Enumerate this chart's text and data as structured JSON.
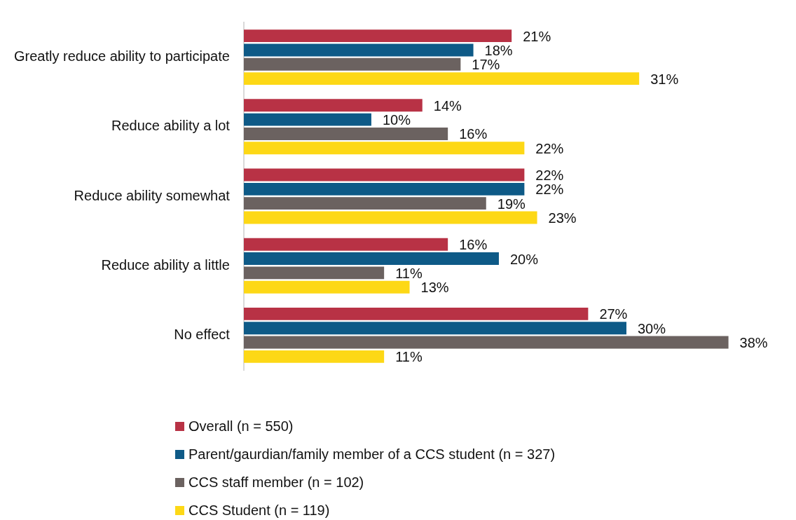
{
  "chart_data": {
    "type": "bar",
    "orientation": "horizontal",
    "categories": [
      "Greatly reduce ability to participate",
      "Reduce ability a lot",
      "Reduce ability somewhat",
      "Reduce ability a little",
      "No effect"
    ],
    "series": [
      {
        "name": "Overall (n = 550)",
        "color": "#b83245",
        "values": [
          21,
          14,
          22,
          16,
          27
        ],
        "value_labels": [
          "21%",
          "14%",
          "22%",
          "16%",
          "27%"
        ]
      },
      {
        "name": "Parent/gaurdian/family member of a CCS student (n = 327)",
        "color": "#0e5a87",
        "values": [
          18,
          10,
          22,
          20,
          30
        ],
        "value_labels": [
          "18%",
          "10%",
          "22%",
          "20%",
          "30%"
        ]
      },
      {
        "name": "CCS staff member (n = 102)",
        "color": "#6b6260",
        "values": [
          17,
          16,
          19,
          11,
          38
        ],
        "value_labels": [
          "17%",
          "16%",
          "19%",
          "11%",
          "38%"
        ]
      },
      {
        "name": "CCS Student (n = 119)",
        "color": "#fdd816",
        "values": [
          31,
          22,
          23,
          13,
          11
        ],
        "value_labels": [
          "31%",
          "22%",
          "23%",
          "13%",
          "11%"
        ]
      }
    ],
    "tick_labels": "y",
    "legend": "bottom"
  }
}
